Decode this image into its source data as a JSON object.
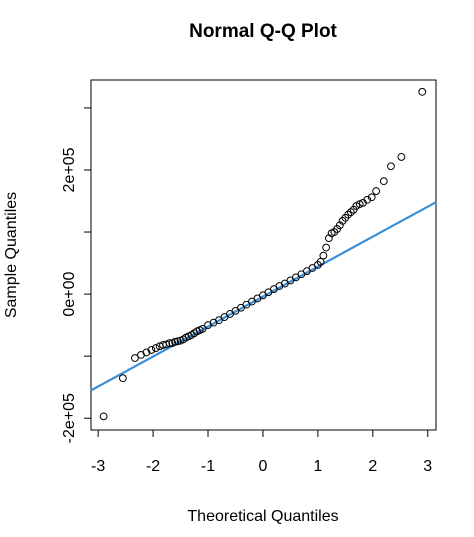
{
  "chart_data": {
    "type": "scatter",
    "title": "Normal Q-Q Plot",
    "x_label": "Theoretical Quantiles",
    "y_label": "Sample Quantiles",
    "x": [
      -2.9,
      -2.55,
      -2.33,
      -2.22,
      -2.12,
      -2.03,
      -1.95,
      -1.88,
      -1.82,
      -1.76,
      -1.7,
      -1.65,
      -1.6,
      -1.55,
      -1.5,
      -1.45,
      -1.4,
      -1.35,
      -1.3,
      -1.25,
      -1.2,
      -1.15,
      -1.1,
      -1.0,
      -0.9,
      -0.8,
      -0.7,
      -0.6,
      -0.5,
      -0.4,
      -0.3,
      -0.2,
      -0.1,
      0,
      0.1,
      0.2,
      0.3,
      0.4,
      0.5,
      0.6,
      0.7,
      0.8,
      0.9,
      1.0,
      1.05,
      1.1,
      1.15,
      1.2,
      1.25,
      1.3,
      1.35,
      1.4,
      1.45,
      1.5,
      1.55,
      1.6,
      1.65,
      1.7,
      1.76,
      1.82,
      1.9,
      1.98,
      2.06,
      2.2,
      2.33,
      2.52,
      2.9
    ],
    "values": [
      -197000,
      -135500,
      -103000,
      -98000,
      -94000,
      -90000,
      -87000,
      -84000,
      -82000,
      -81000,
      -79000,
      -79000,
      -77000,
      -76000,
      -75000,
      -73000,
      -70000,
      -68000,
      -66000,
      -63000,
      -60000,
      -58000,
      -56000,
      -50000,
      -46000,
      -42000,
      -37000,
      -32000,
      -27000,
      -22000,
      -17000,
      -12000,
      -7000,
      -2000,
      3000,
      8000,
      13000,
      17000,
      22000,
      27000,
      32000,
      37000,
      42000,
      47000,
      52000,
      62000,
      75000,
      90000,
      98000,
      100000,
      105000,
      111000,
      118000,
      123000,
      128000,
      132000,
      136000,
      142000,
      145000,
      147000,
      152000,
      156000,
      166000,
      182000,
      206000,
      221000,
      326000
    ],
    "color": "#000000",
    "reference_line": {
      "intercept": -4000,
      "slope": 48300,
      "color": "#3a8fd8"
    },
    "xlim": [
      -3.13,
      3.15
    ],
    "ylim": [
      -219000,
      345000
    ],
    "xticks": [
      -3,
      -2,
      -1,
      0,
      1,
      2,
      3
    ],
    "yticks": [
      {
        "value": -200000,
        "label": "-2e+05"
      },
      {
        "value": 0,
        "label": "0e+00"
      },
      {
        "value": 200000,
        "label": "2e+05"
      }
    ],
    "yminor_ticks": [
      -100000,
      100000,
      300000
    ]
  }
}
